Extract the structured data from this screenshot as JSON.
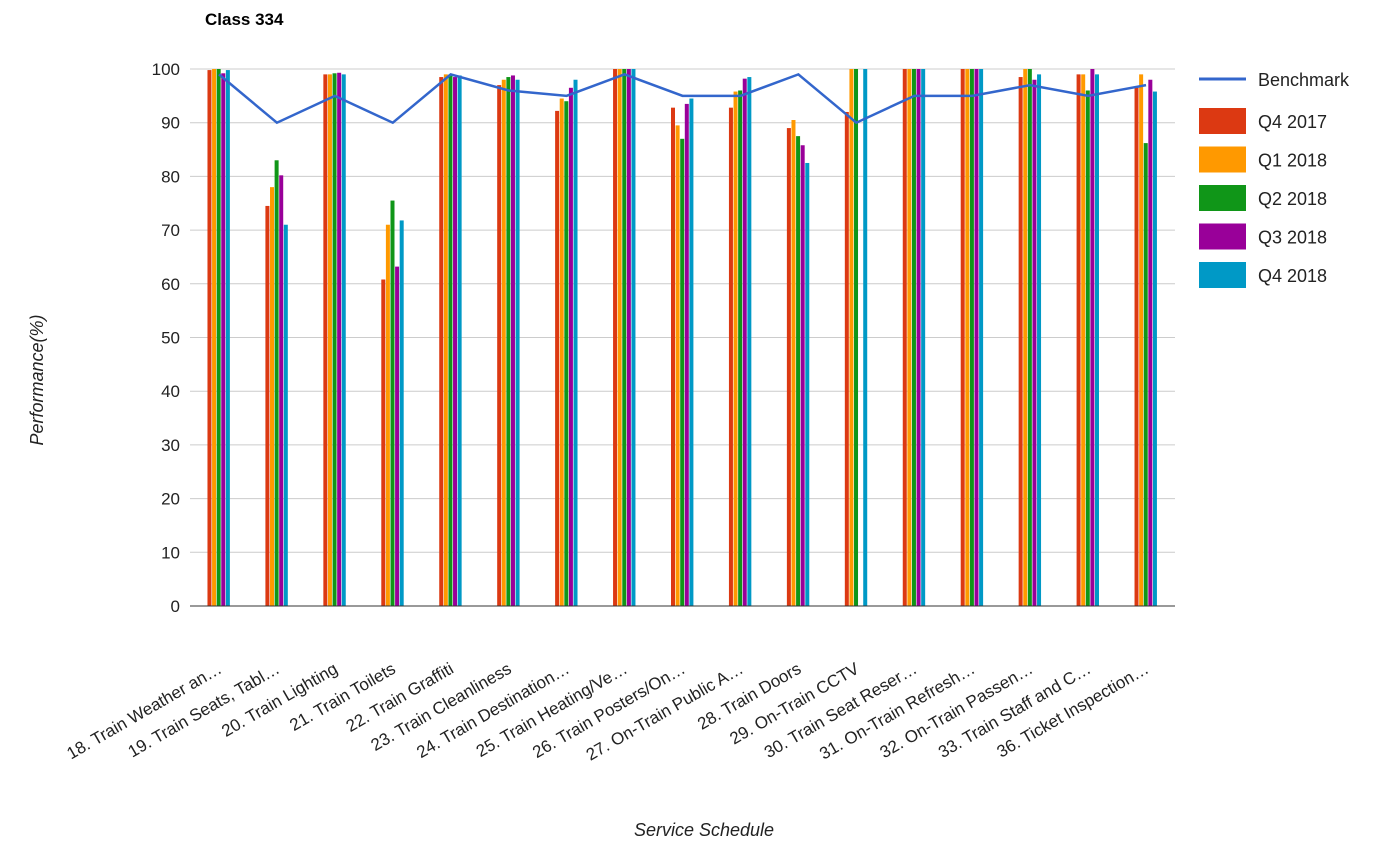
{
  "chart_data": {
    "type": "bar",
    "title": "Class 334",
    "xlabel": "Service Schedule",
    "ylabel": "Performance(%)",
    "ylim": [
      0,
      100
    ],
    "yticks": [
      0,
      10,
      20,
      30,
      40,
      50,
      60,
      70,
      80,
      90,
      100
    ],
    "legend_position": "right",
    "grid": true,
    "categories": [
      "18. Train Weather an…",
      "19. Train Seats, Tabl…",
      "20. Train Lighting",
      "21. Train Toilets",
      "22. Train Graffiti",
      "23. Train Cleanliness",
      "24. Train Destination…",
      "25. Train Heating/Ve…",
      "26. Train Posters/On…",
      "27. On-Train Public A…",
      "28. Train Doors",
      "29. On-Train CCTV",
      "30. Train Seat Reser…",
      "31. On-Train Refresh…",
      "32. On-Train Passen…",
      "33. Train Staff and C…",
      "36. Ticket Inspection…"
    ],
    "series": [
      {
        "name": "Q4 2017",
        "color": "#dc3912",
        "values": [
          99.8,
          74.5,
          99.0,
          60.8,
          98.5,
          97.0,
          92.2,
          100,
          92.8,
          92.8,
          89.0,
          92.0,
          100,
          100,
          98.5,
          99.0,
          96.8
        ]
      },
      {
        "name": "Q1 2018",
        "color": "#ff9900",
        "values": [
          100,
          78.0,
          99.0,
          71.0,
          99.0,
          98.0,
          94.5,
          100,
          89.5,
          95.8,
          90.5,
          100,
          100,
          100,
          100,
          99.0,
          99.0
        ]
      },
      {
        "name": "Q2 2018",
        "color": "#109618",
        "values": [
          100,
          83.0,
          99.2,
          75.5,
          99.0,
          98.5,
          94.0,
          100,
          87.0,
          96.0,
          87.5,
          100,
          100,
          100,
          100,
          96.0,
          86.2
        ]
      },
      {
        "name": "Q3 2018",
        "color": "#990099",
        "values": [
          99.2,
          80.2,
          99.3,
          63.2,
          98.5,
          98.8,
          96.5,
          100,
          93.5,
          98.2,
          85.8,
          0,
          100,
          100,
          98.0,
          100,
          98.0
        ]
      },
      {
        "name": "Q4 2018",
        "color": "#0099c6",
        "values": [
          99.8,
          71.0,
          99.0,
          71.8,
          98.8,
          98.0,
          98.0,
          100,
          94.5,
          98.5,
          82.5,
          100,
          100,
          100,
          99.0,
          99.0,
          95.8
        ]
      }
    ],
    "line_series": {
      "name": "Benchmark",
      "color": "#3366cc",
      "values": [
        99,
        90,
        95,
        90,
        99,
        96,
        95,
        99,
        95,
        95,
        99,
        90,
        95,
        95,
        97,
        95,
        97
      ]
    }
  }
}
